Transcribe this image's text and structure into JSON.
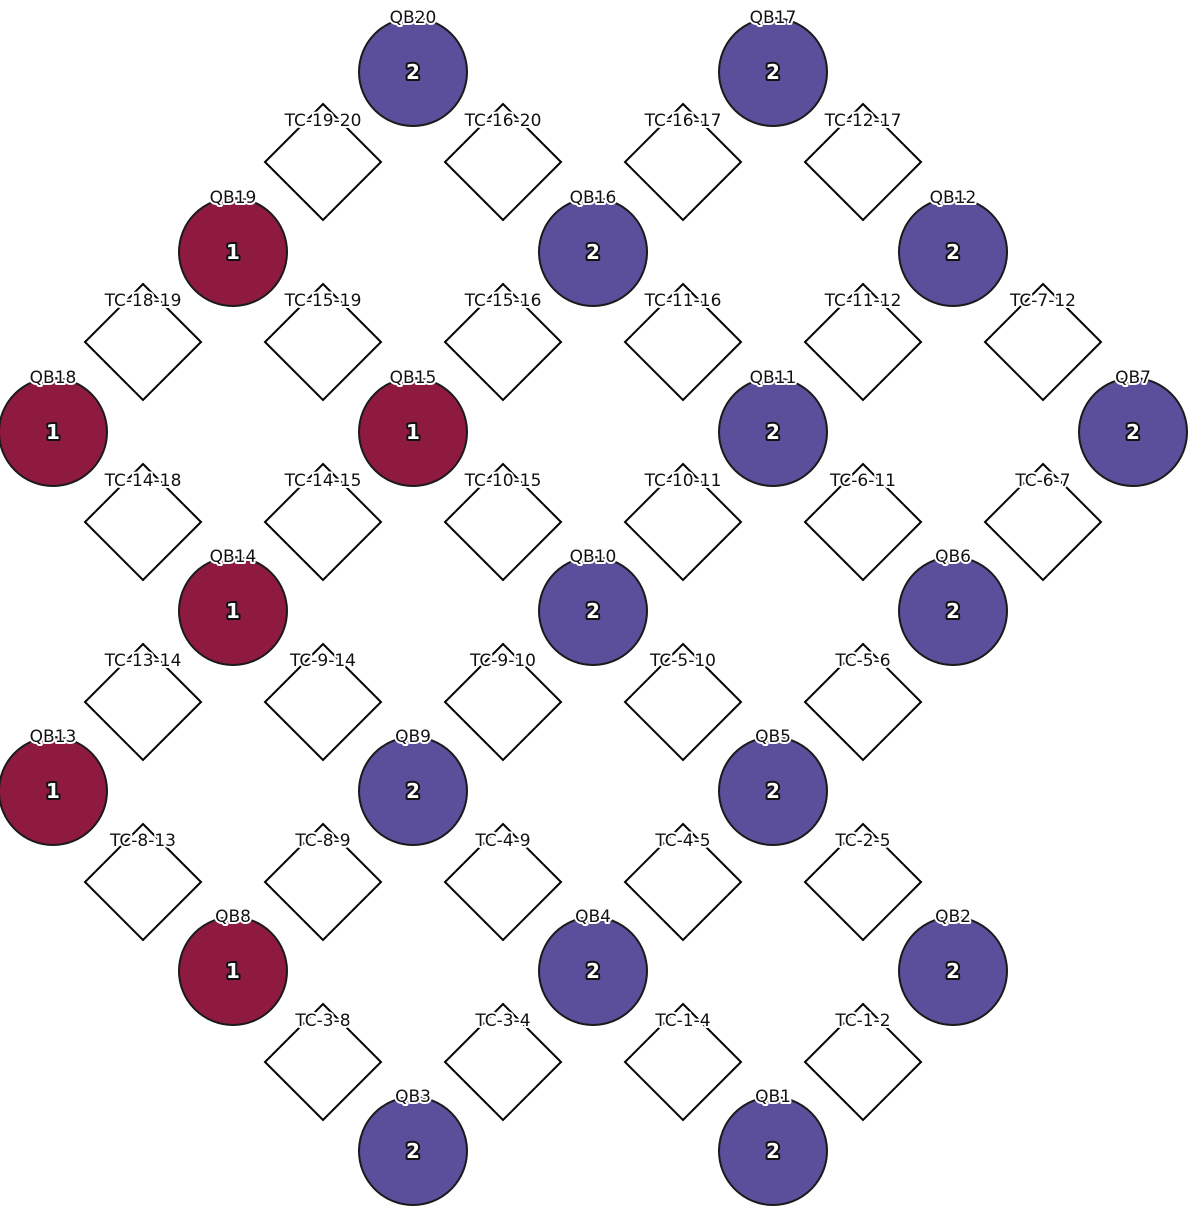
{
  "colors": {
    "state_1": "#8e1b3f",
    "state_2": "#5b4f9b",
    "coupler_fill": "#ffffff",
    "coupler_stroke": "#000000"
  },
  "qubits": [
    {
      "id": "QB20",
      "label": "QB20",
      "value": "2"
    },
    {
      "id": "QB17",
      "label": "QB17",
      "value": "2"
    },
    {
      "id": "QB19",
      "label": "QB19",
      "value": "1"
    },
    {
      "id": "QB16",
      "label": "QB16",
      "value": "2"
    },
    {
      "id": "QB12",
      "label": "QB12",
      "value": "2"
    },
    {
      "id": "QB18",
      "label": "QB18",
      "value": "1"
    },
    {
      "id": "QB15",
      "label": "QB15",
      "value": "1"
    },
    {
      "id": "QB11",
      "label": "QB11",
      "value": "2"
    },
    {
      "id": "QB7",
      "label": "QB7",
      "value": "2"
    },
    {
      "id": "QB14",
      "label": "QB14",
      "value": "1"
    },
    {
      "id": "QB10",
      "label": "QB10",
      "value": "2"
    },
    {
      "id": "QB6",
      "label": "QB6",
      "value": "2"
    },
    {
      "id": "QB13",
      "label": "QB13",
      "value": "1"
    },
    {
      "id": "QB9",
      "label": "QB9",
      "value": "2"
    },
    {
      "id": "QB5",
      "label": "QB5",
      "value": "2"
    },
    {
      "id": "QB8",
      "label": "QB8",
      "value": "1"
    },
    {
      "id": "QB4",
      "label": "QB4",
      "value": "2"
    },
    {
      "id": "QB2",
      "label": "QB2",
      "value": "2"
    },
    {
      "id": "QB3",
      "label": "QB3",
      "value": "2"
    },
    {
      "id": "QB1",
      "label": "QB1",
      "value": "2"
    }
  ],
  "couplers": [
    {
      "id": "TC-19-20",
      "label": "TC-19-20"
    },
    {
      "id": "TC-16-20",
      "label": "TC-16-20"
    },
    {
      "id": "TC-16-17",
      "label": "TC-16-17"
    },
    {
      "id": "TC-12-17",
      "label": "TC-12-17"
    },
    {
      "id": "TC-18-19",
      "label": "TC-18-19"
    },
    {
      "id": "TC-15-19",
      "label": "TC-15-19"
    },
    {
      "id": "TC-15-16",
      "label": "TC-15-16"
    },
    {
      "id": "TC-11-16",
      "label": "TC-11-16"
    },
    {
      "id": "TC-11-12",
      "label": "TC-11-12"
    },
    {
      "id": "TC-7-12",
      "label": "TC-7-12"
    },
    {
      "id": "TC-14-18",
      "label": "TC-14-18"
    },
    {
      "id": "TC-14-15",
      "label": "TC-14-15"
    },
    {
      "id": "TC-10-15",
      "label": "TC-10-15"
    },
    {
      "id": "TC-10-11",
      "label": "TC-10-11"
    },
    {
      "id": "TC-6-11",
      "label": "TC-6-11"
    },
    {
      "id": "TC-6-7",
      "label": "TC-6-7"
    },
    {
      "id": "TC-13-14",
      "label": "TC-13-14"
    },
    {
      "id": "TC-9-14",
      "label": "TC-9-14"
    },
    {
      "id": "TC-9-10",
      "label": "TC-9-10"
    },
    {
      "id": "TC-5-10",
      "label": "TC-5-10"
    },
    {
      "id": "TC-5-6",
      "label": "TC-5-6"
    },
    {
      "id": "TC-8-13",
      "label": "TC-8-13"
    },
    {
      "id": "TC-8-9",
      "label": "TC-8-9"
    },
    {
      "id": "TC-4-9",
      "label": "TC-4-9"
    },
    {
      "id": "TC-4-5",
      "label": "TC-4-5"
    },
    {
      "id": "TC-2-5",
      "label": "TC-2-5"
    },
    {
      "id": "TC-3-8",
      "label": "TC-3-8"
    },
    {
      "id": "TC-3-4",
      "label": "TC-3-4"
    },
    {
      "id": "TC-1-4",
      "label": "TC-1-4"
    },
    {
      "id": "TC-1-2",
      "label": "TC-1-2"
    }
  ]
}
